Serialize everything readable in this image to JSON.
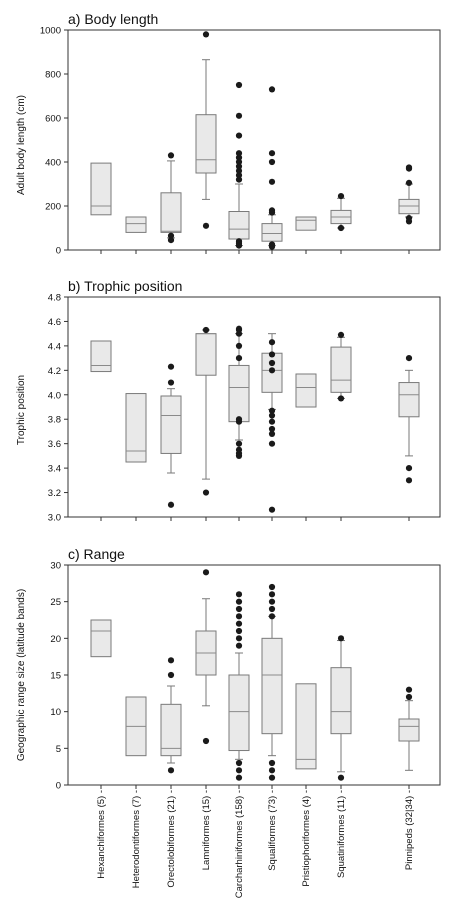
{
  "chart_data": [
    {
      "type": "box",
      "title": "a) Body length",
      "ylabel": "Adult body length (cm)",
      "ylim": [
        0,
        1000
      ],
      "yticks": [
        0,
        200,
        400,
        600,
        800,
        1000
      ],
      "boxes": [
        {
          "order": "Hexanchiformes",
          "whislo": 160,
          "q1": 160,
          "med": 200,
          "q3": 395,
          "whishi": 395,
          "fliers": []
        },
        {
          "order": "Heterodontiformes",
          "whislo": 80,
          "q1": 80,
          "med": 120,
          "q3": 150,
          "whishi": 150,
          "fliers": []
        },
        {
          "order": "Orectolobiformes",
          "whislo": 55,
          "q1": 80,
          "med": 85,
          "q3": 260,
          "whishi": 405,
          "fliers": [
            45,
            65,
            430
          ]
        },
        {
          "order": "Lamniformes",
          "whislo": 230,
          "q1": 350,
          "med": 410,
          "q3": 615,
          "whishi": 865,
          "fliers": [
            110,
            980
          ]
        },
        {
          "order": "Carcharhiniformes",
          "whislo": 20,
          "q1": 50,
          "med": 95,
          "q3": 175,
          "whishi": 300,
          "fliers": [
            20,
            30,
            40,
            320,
            340,
            360,
            380,
            400,
            420,
            440,
            520,
            610,
            750
          ]
        },
        {
          "order": "Squaliformes",
          "whislo": 20,
          "q1": 40,
          "med": 75,
          "q3": 120,
          "whishi": 160,
          "fliers": [
            15,
            25,
            170,
            180,
            310,
            400,
            440,
            730
          ]
        },
        {
          "order": "Pristiophoriformes",
          "whislo": 90,
          "q1": 90,
          "med": 135,
          "q3": 150,
          "whishi": 150,
          "fliers": []
        },
        {
          "order": "Squatiniformes",
          "whislo": 100,
          "q1": 120,
          "med": 150,
          "q3": 180,
          "whishi": 235,
          "fliers": [
            100,
            245
          ]
        },
        {
          "order": "Pinnipeds",
          "whislo": 150,
          "q1": 165,
          "med": 200,
          "q3": 230,
          "whishi": 300,
          "fliers": [
            130,
            145,
            305,
            370,
            375
          ]
        }
      ]
    },
    {
      "type": "box",
      "title": "b) Trophic position",
      "ylabel": "Trophic position",
      "ylim": [
        3.0,
        4.8
      ],
      "yticks": [
        "3.0",
        "3.2",
        "3.4",
        "3.6",
        "3.8",
        "4.0",
        "4.2",
        "4.4",
        "4.6",
        "4.8"
      ],
      "boxes": [
        {
          "order": "Hexanchiformes",
          "whislo": 4.19,
          "q1": 4.19,
          "med": 4.24,
          "q3": 4.44,
          "whishi": 4.44,
          "fliers": []
        },
        {
          "order": "Heterodontiformes",
          "whislo": 3.45,
          "q1": 3.45,
          "med": 3.54,
          "q3": 4.01,
          "whishi": 4.01,
          "fliers": []
        },
        {
          "order": "Orectolobiformes",
          "whislo": 3.36,
          "q1": 3.52,
          "med": 3.83,
          "q3": 3.99,
          "whishi": 4.05,
          "fliers": [
            3.1,
            4.1,
            4.23
          ]
        },
        {
          "order": "Lamniformes",
          "whislo": 3.31,
          "q1": 4.16,
          "med": 4.5,
          "q3": 4.5,
          "whishi": 4.53,
          "fliers": [
            3.2,
            4.53
          ]
        },
        {
          "order": "Carcharhiniformes",
          "whislo": 3.63,
          "q1": 3.78,
          "med": 4.06,
          "q3": 4.24,
          "whishi": 4.5,
          "fliers": [
            3.5,
            3.52,
            3.55,
            3.6,
            3.78,
            3.8,
            4.3,
            4.4,
            4.5,
            4.53,
            4.54
          ]
        },
        {
          "order": "Squaliformes",
          "whislo": 3.88,
          "q1": 4.02,
          "med": 4.2,
          "q3": 4.34,
          "whishi": 4.5,
          "fliers": [
            3.06,
            3.6,
            3.68,
            3.72,
            3.78,
            3.83,
            3.87,
            4.2,
            4.26,
            4.33,
            4.43
          ]
        },
        {
          "order": "Pristiophoriformes",
          "whislo": 3.9,
          "q1": 3.9,
          "med": 4.06,
          "q3": 4.17,
          "whishi": 4.17,
          "fliers": []
        },
        {
          "order": "Squatiniformes",
          "whislo": 3.97,
          "q1": 4.02,
          "med": 4.12,
          "q3": 4.39,
          "whishi": 4.47,
          "fliers": [
            3.97,
            4.49
          ]
        },
        {
          "order": "Pinnipeds",
          "whislo": 3.5,
          "q1": 3.82,
          "med": 4.0,
          "q3": 4.1,
          "whishi": 4.2,
          "fliers": [
            3.3,
            3.4,
            4.3
          ]
        }
      ]
    },
    {
      "type": "box",
      "title": "c) Range",
      "ylabel": "Geographic range size (latitude bands)",
      "ylim": [
        0,
        30
      ],
      "yticks": [
        0,
        5,
        10,
        15,
        20,
        25,
        30
      ],
      "boxes": [
        {
          "order": "Hexanchiformes",
          "whislo": 17.5,
          "q1": 17.5,
          "med": 21,
          "q3": 22.5,
          "whishi": 22.5,
          "fliers": []
        },
        {
          "order": "Heterodontiformes",
          "whislo": 4,
          "q1": 4,
          "med": 8,
          "q3": 12,
          "whishi": 12,
          "fliers": []
        },
        {
          "order": "Orectolobiformes",
          "whislo": 3,
          "q1": 4,
          "med": 5,
          "q3": 11,
          "whishi": 13.5,
          "fliers": [
            2,
            15,
            17
          ]
        },
        {
          "order": "Lamniformes",
          "whislo": 10.8,
          "q1": 15,
          "med": 18,
          "q3": 21,
          "whishi": 25.4,
          "fliers": [
            6,
            29
          ]
        },
        {
          "order": "Carcharhiniformes",
          "whislo": 3.5,
          "q1": 4.7,
          "med": 10,
          "q3": 15,
          "whishi": 18,
          "fliers": [
            1,
            2,
            3,
            19,
            20,
            21,
            22,
            23,
            24,
            25,
            26
          ]
        },
        {
          "order": "Squaliformes",
          "whislo": 4,
          "q1": 7,
          "med": 15,
          "q3": 20,
          "whishi": 23,
          "fliers": [
            1,
            2,
            3,
            23,
            24,
            25,
            26,
            27
          ]
        },
        {
          "order": "Pristiophoriformes",
          "whislo": 2.2,
          "q1": 2.2,
          "med": 3.5,
          "q3": 13.8,
          "whishi": 13.8,
          "fliers": []
        },
        {
          "order": "Squatiniformes",
          "whislo": 1.8,
          "q1": 7,
          "med": 10,
          "q3": 16,
          "whishi": 19.7,
          "fliers": [
            1,
            20
          ]
        },
        {
          "order": "Pinnipeds",
          "whislo": 2,
          "q1": 6,
          "med": 8,
          "q3": 9,
          "whishi": 11.5,
          "fliers": [
            12,
            13
          ]
        }
      ]
    }
  ],
  "x_labels": [
    "Hexanchiformes (5) -",
    "Heterodontiformes (7) -",
    "Orectolobiformes (21) -",
    "Lamniformes (15) -",
    "Carcharhiniformes (158) -",
    "Squaliformes (73) -",
    "Pristiophoriformes (4) -",
    "Squatiniformes (11) -",
    "Pinnipeds (32|34) -"
  ],
  "colors": {
    "box_fill": "#e9e9e9",
    "box_stroke": "#7a7a7a",
    "median": "#8a8a8a",
    "outlier": "#1a1a1a",
    "axis": "#333333"
  }
}
